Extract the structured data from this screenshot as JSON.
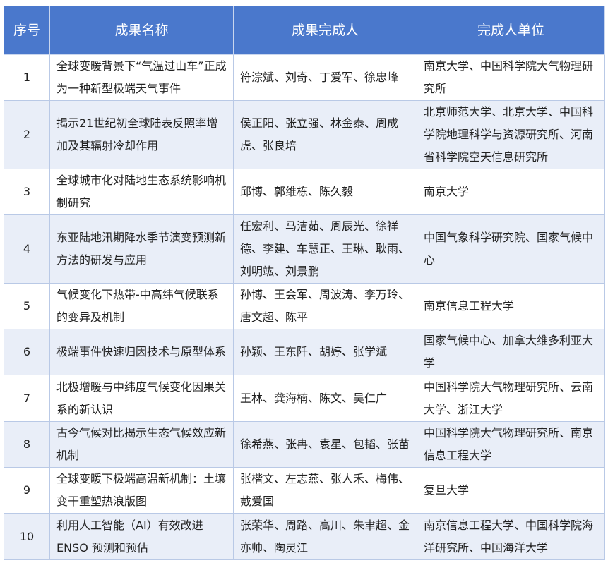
{
  "colors": {
    "header_bg": "#4a78cc",
    "alt_row_bg": "#e9eef8"
  },
  "headers": [
    "序号",
    "成果名称",
    "成果完成人",
    "完成人单位"
  ],
  "rows": [
    {
      "no": "1",
      "title": "全球变暖背景下“气温过山车”正成为一种新型极端天气事件",
      "people": "符淙斌、刘奇、丁爱军、徐忠峰",
      "org": "南京大学、中国科学院大气物理研究所"
    },
    {
      "no": "2",
      "title": "揭示21世纪初全球陆表反照率增加及其辐射冷却作用",
      "people": "侯正阳、张立强、林金泰、周成虎、张良培",
      "org": "北京师范大学、北京大学、中国科学院地理科学与资源研究所、河南省科学院空天信息研究所"
    },
    {
      "no": "3",
      "title": "全球城市化对陆地生态系统影响机制研究",
      "people": "邱博、郭维栋、陈久毅",
      "org": "南京大学"
    },
    {
      "no": "4",
      "title": "东亚陆地汛期降水季节演变预测新方法的研发与应用",
      "people": "任宏利、马洁茹、周辰光、徐祥德、李建、车慧正、王琳、耿雨、刘明竑、刘景鹏",
      "org": "中国气象科学研究院、国家气候中心"
    },
    {
      "no": "5",
      "title": "气候变化下热带-中高纬气候联系的变异及机制",
      "people": "孙博、王会军、周波涛、李万玲、唐文超、陈平",
      "org": "南京信息工程大学"
    },
    {
      "no": "6",
      "title": "极端事件快速归因技术与原型体系",
      "people": "孙颖、王东阡、胡婷、张学斌",
      "org": "国家气候中心、加拿大维多利亚大学"
    },
    {
      "no": "7",
      "title": "北极增暖与中纬度气候变化因果关系的新认识",
      "people": "王林、龚海楠、陈文、吴仁广",
      "org": "中国科学院大气物理研究所、云南大学、浙江大学"
    },
    {
      "no": "8",
      "title": "古今气候对比揭示生态气候效应新机制",
      "people": "徐希燕、张冉、袁星、包韬、张苗",
      "org": "中国科学院大气物理研究所、南京信息工程大学"
    },
    {
      "no": "9",
      "title": "全球变暖下极端高温新机制：土壤变干重塑热浪版图",
      "people": "张楷文、左志燕、张人禾、梅伟、戴爱国",
      "org": "复旦大学"
    },
    {
      "no": "10",
      "title": "利用人工智能（AI）有效改进ENSO 预测和预估",
      "people": "张荣华、周路、高川、朱聿超、金亦帅、陶灵江",
      "org": "南京信息工程大学、中国科学院海洋研究所、中国海洋大学"
    }
  ]
}
